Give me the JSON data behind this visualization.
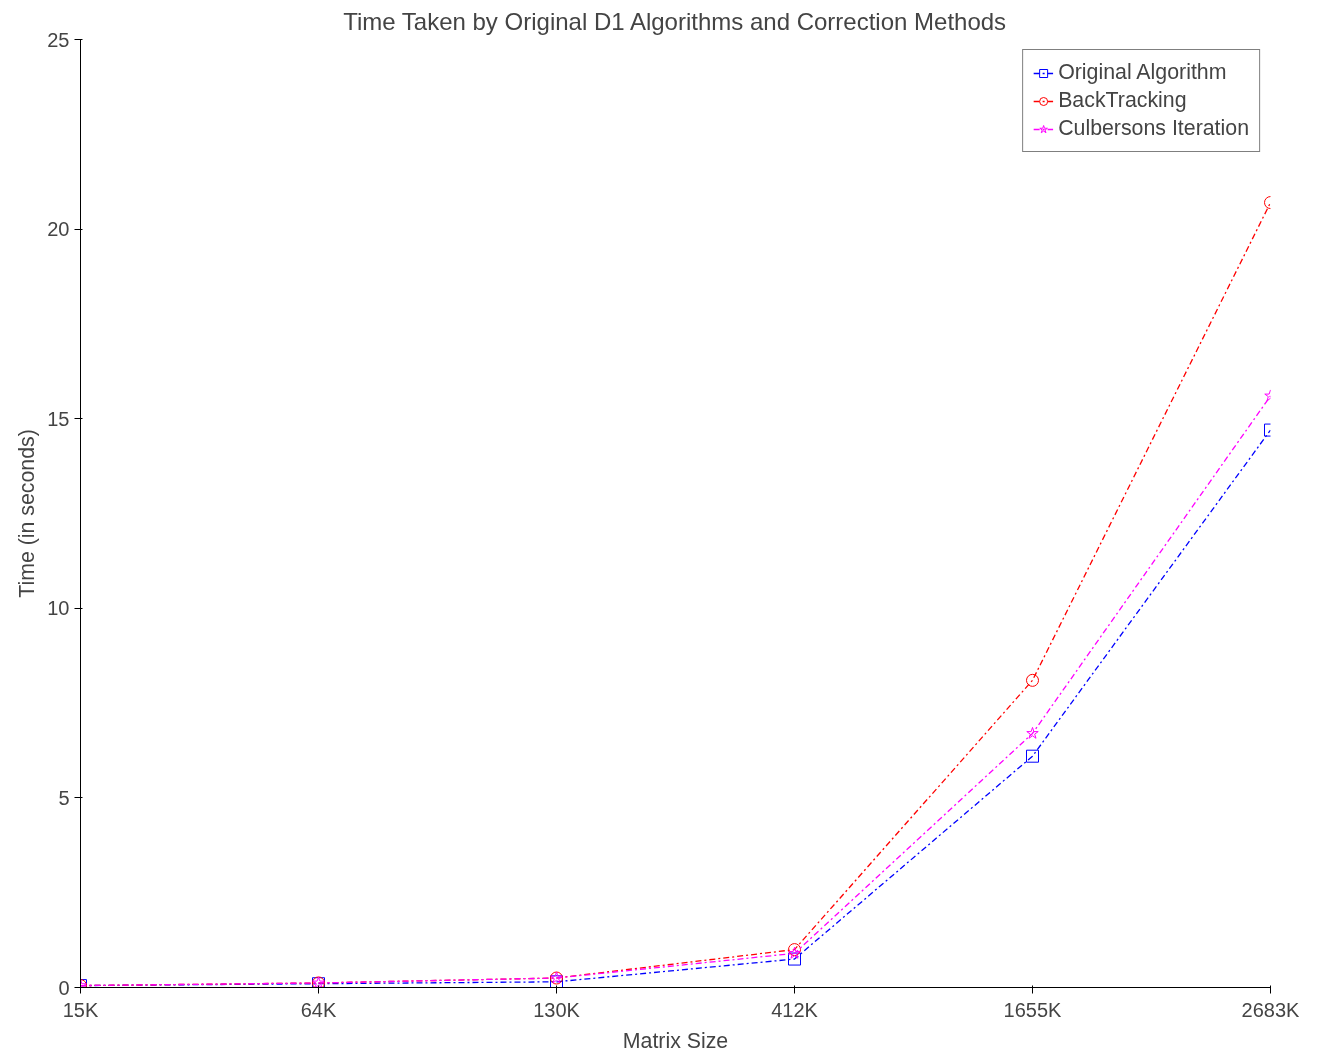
{
  "chart_data": {
    "type": "line",
    "title": "Time Taken by Original D1 Algorithms and Correction Methods",
    "xlabel": "Matrix Size",
    "ylabel": "Time (in seconds)",
    "categories": [
      "15K",
      "64K",
      "130K",
      "412K",
      "1655K",
      "2683K"
    ],
    "ylim": [
      0,
      25
    ],
    "yticks": [
      0,
      5,
      10,
      15,
      20,
      25
    ],
    "grid": false,
    "legend": "top right",
    "line_style": "dashed",
    "series": [
      {
        "name": "Original Algorithm",
        "color": "#0000ff",
        "marker": "square",
        "values": [
          0.05,
          0.1,
          0.15,
          0.75,
          6.1,
          14.7
        ]
      },
      {
        "name": "BackTracking",
        "color": "#ff0000",
        "marker": "circle",
        "values": [
          0.05,
          0.12,
          0.25,
          1.0,
          8.1,
          20.7
        ]
      },
      {
        "name": "Culbersons Iteration",
        "color": "#ff00ff",
        "marker": "star",
        "values": [
          0.05,
          0.12,
          0.25,
          0.9,
          6.7,
          15.6
        ]
      }
    ]
  }
}
